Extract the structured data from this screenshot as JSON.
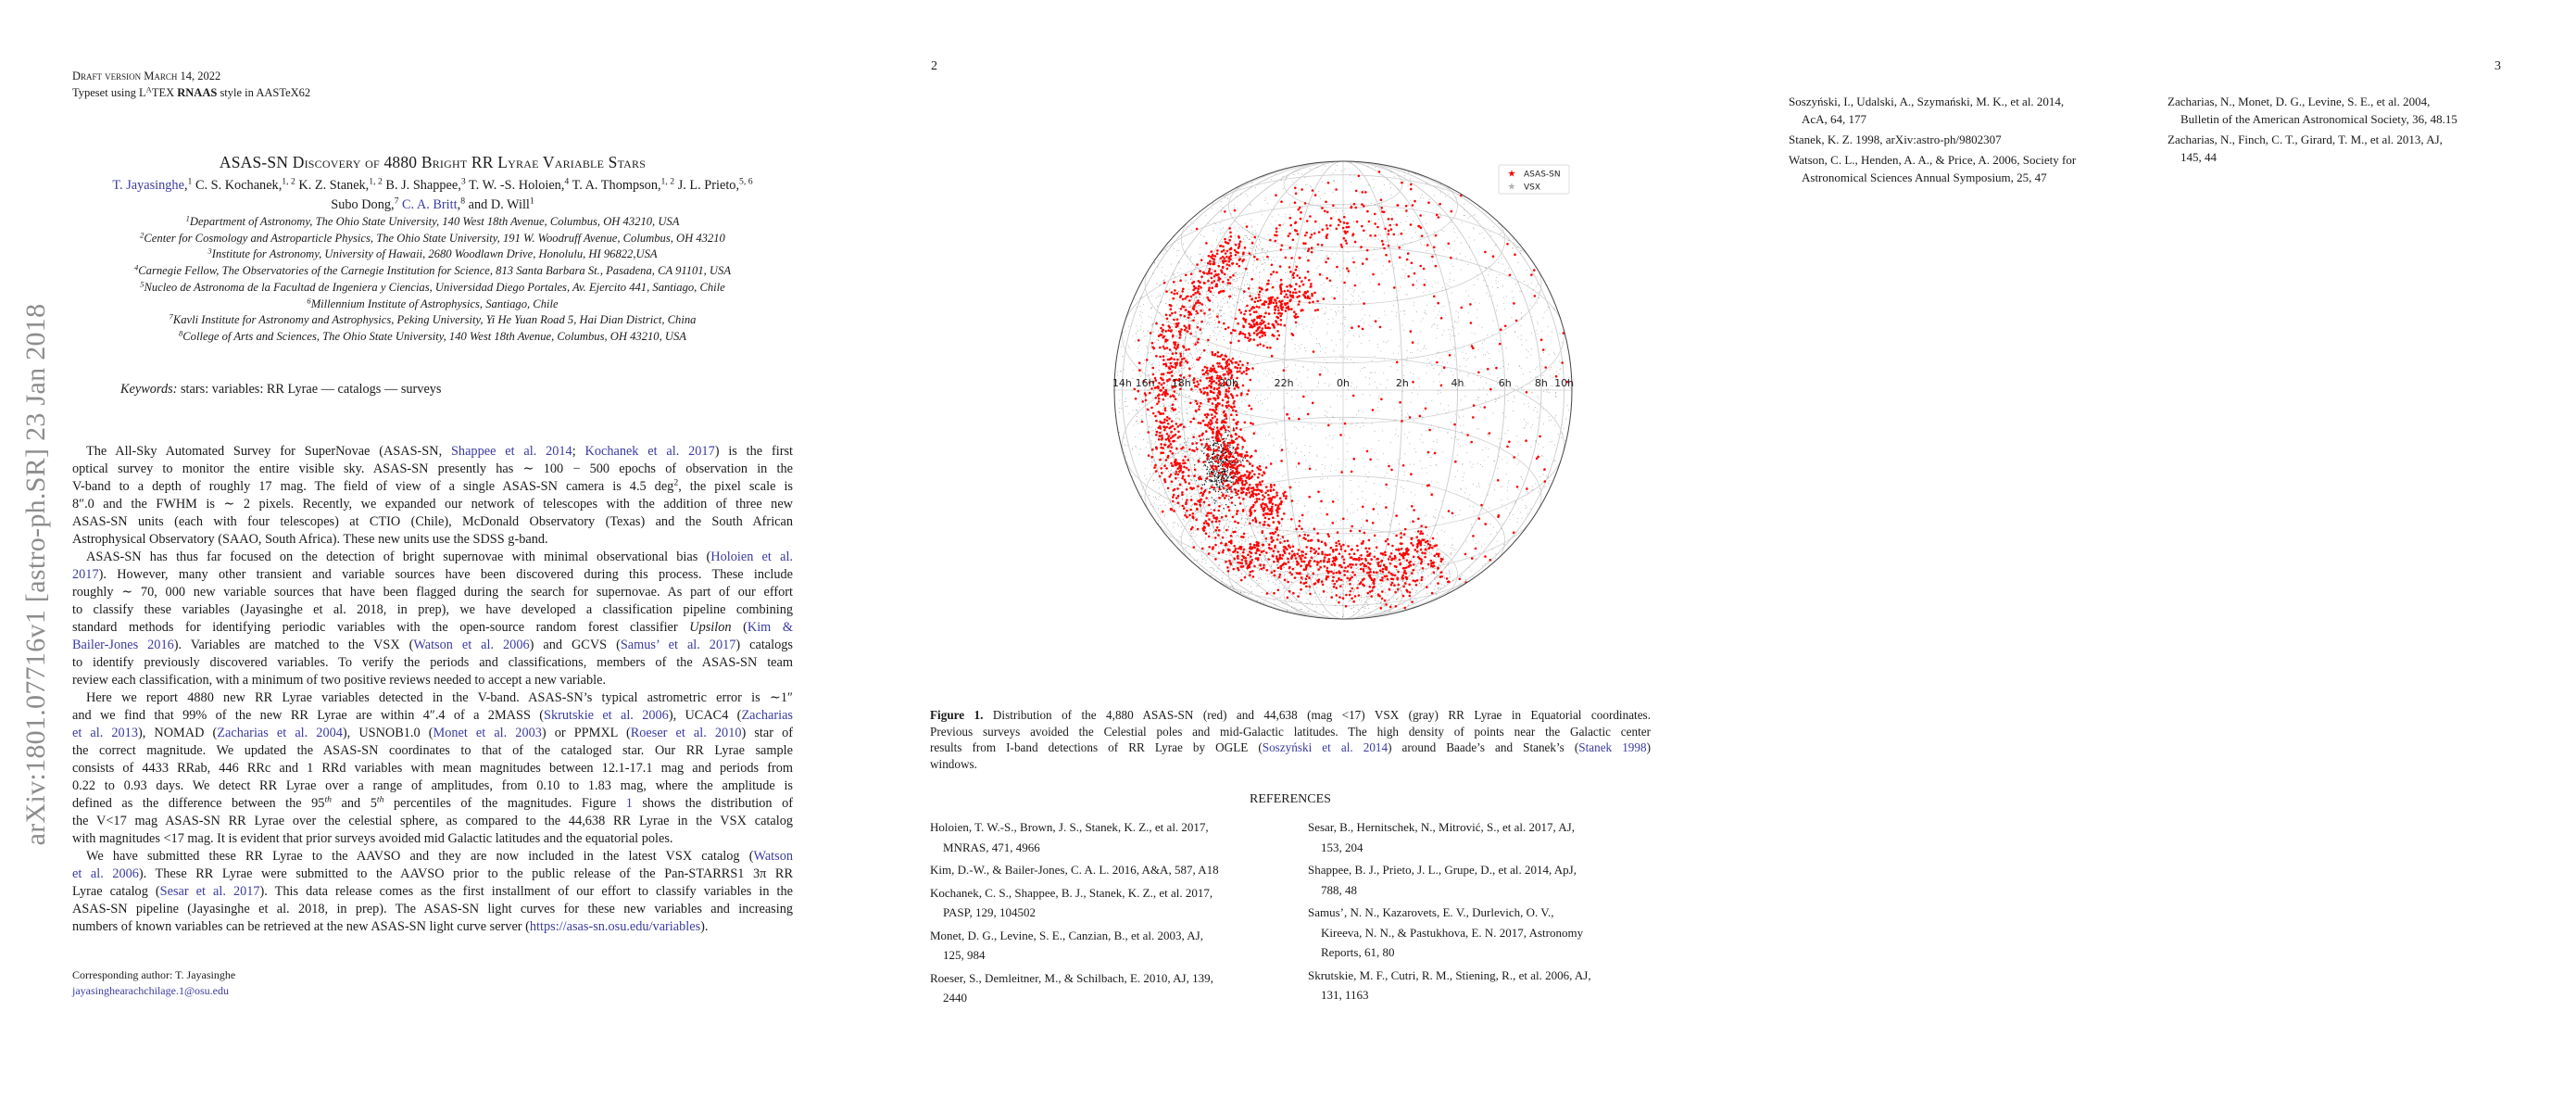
{
  "stamp": "arXiv:1801.07716v1  [astro-ph.SR]  23 Jan 2018",
  "page1": {
    "draft": "Draft version March 14, 2022",
    "typeset": [
      [
        "Typeset using L"
      ],
      [
        "A",
        "s"
      ],
      [
        "TEX "
      ],
      [
        "RNAAS",
        "b"
      ],
      [
        " style in AASTeX62"
      ]
    ],
    "title": "ASAS-SN Discovery of 4880 Bright RR Lyrae Variable Stars",
    "authors": [
      [
        [
          "T. Jayasinghe",
          "l"
        ],
        [
          ","
        ],
        [
          "1",
          "s"
        ],
        [
          " C. S. Kochanek,"
        ],
        [
          "1, 2",
          "s"
        ],
        [
          " K. Z. Stanek,"
        ],
        [
          "1, 2",
          "s"
        ],
        [
          " B. J. Shappee,"
        ],
        [
          "3",
          "s"
        ],
        [
          " T. W. -S. Holoien,"
        ],
        [
          "4",
          "s"
        ],
        [
          " T. A. Thompson,"
        ],
        [
          "1, 2",
          "s"
        ],
        [
          " J. L. Prieto,"
        ],
        [
          "5, 6",
          "s"
        ]
      ],
      [
        [
          "Subo Dong,"
        ],
        [
          "7",
          "s"
        ],
        [
          " "
        ],
        [
          "C. A. Britt",
          "l"
        ],
        [
          ","
        ],
        [
          "8",
          "s"
        ],
        [
          " and D. Will"
        ],
        [
          "1",
          "s"
        ]
      ]
    ],
    "affiliations": [
      [
        [
          "1",
          "s"
        ],
        [
          "Department of Astronomy, The Ohio State University, 140 West 18th Avenue, Columbus, OH 43210, USA"
        ]
      ],
      [
        [
          "2",
          "s"
        ],
        [
          "Center for Cosmology and Astroparticle Physics, The Ohio State University, 191 W. Woodruff Avenue, Columbus, OH 43210"
        ]
      ],
      [
        [
          "3",
          "s"
        ],
        [
          "Institute for Astronomy, University of Hawaii, 2680 Woodlawn Drive, Honolulu, HI 96822,USA"
        ]
      ],
      [
        [
          "4",
          "s"
        ],
        [
          "Carnegie Fellow, The Observatories of the Carnegie Institution for Science, 813 Santa Barbara St., Pasadena, CA 91101, USA"
        ]
      ],
      [
        [
          "5",
          "s"
        ],
        [
          "Nucleo de Astronoma de la Facultad de Ingeniera y Ciencias, Universidad Diego Portales, Av. Ejercito 441, Santiago, Chile"
        ]
      ],
      [
        [
          "6",
          "s"
        ],
        [
          "Millennium Institute of Astrophysics, Santiago, Chile"
        ]
      ],
      [
        [
          "7",
          "s"
        ],
        [
          "Kavli Institute for Astronomy and Astrophysics, Peking University, Yi He Yuan Road 5, Hai Dian District, China"
        ]
      ],
      [
        [
          "8",
          "s"
        ],
        [
          "College of Arts and Sciences, The Ohio State University, 140 West 18th Avenue, Columbus, OH 43210, USA"
        ]
      ]
    ],
    "keywords": [
      [
        "Keywords:",
        "i"
      ],
      [
        " stars: variables: RR Lyrae — catalogs — surveys"
      ]
    ],
    "paragraphs": [
      [
        [
          [
            "The All-Sky Automated Survey for SuperNovae (ASAS-SN, "
          ],
          [
            "Shappee et al. 2014",
            "l"
          ],
          [
            "; "
          ],
          [
            "Kochanek et al. 2017",
            "l"
          ],
          [
            ") is the first"
          ]
        ],
        [
          [
            "optical survey to monitor the entire visible sky.  ASAS-SN presently has ∼ 100 − 500 epochs of observation in the"
          ]
        ],
        [
          [
            "V-band to a depth of roughly 17 mag.  The field of view of a single ASAS-SN camera is 4.5 deg"
          ],
          [
            "2",
            "s"
          ],
          [
            ", the pixel scale is"
          ]
        ],
        [
          [
            "8″.0 and the FWHM is ∼ 2 pixels.  Recently, we expanded our network of telescopes with the addition of three new"
          ]
        ],
        [
          [
            "ASAS-SN units (each with four telescopes) at CTIO (Chile), McDonald Observatory (Texas) and the South African"
          ]
        ],
        [
          [
            "Astrophysical Observatory (SAAO, South Africa). These new units use the SDSS g-band."
          ]
        ]
      ],
      [
        [
          [
            "ASAS-SN has thus far focused on the detection of bright supernovae with minimal observational bias ("
          ],
          [
            "Holoien et al.",
            "l"
          ]
        ],
        [
          [
            "2017",
            "l"
          ],
          [
            "). However, many other transient and variable sources have been discovered during this process.  These include"
          ]
        ],
        [
          [
            "roughly ∼ 70, 000 new variable sources that have been flagged during the search for supernovae. As part of our effort"
          ]
        ],
        [
          [
            "to classify these variables (Jayasinghe et al.   2018, in prep), we have developed a classification pipeline combining"
          ]
        ],
        [
          [
            "standard methods for identifying periodic variables with the open-source random forest classifier "
          ],
          [
            "Upsilon",
            "i"
          ],
          [
            " ("
          ],
          [
            "Kim &",
            "l"
          ]
        ],
        [
          [
            "Bailer-Jones 2016",
            "l"
          ],
          [
            "). Variables are matched to the VSX ("
          ],
          [
            "Watson et al. 2006",
            "l"
          ],
          [
            ") and GCVS ("
          ],
          [
            "Samus’ et al. 2017",
            "l"
          ],
          [
            ") catalogs"
          ]
        ],
        [
          [
            "to identify previously discovered variables.  To verify the periods and classifications, members of the ASAS-SN team"
          ]
        ],
        [
          [
            "review each classification, with a minimum of two positive reviews needed to accept a new variable."
          ]
        ]
      ],
      [
        [
          [
            "Here we report 4880 new RR Lyrae variables detected in the V-band.  ASAS-SN’s typical astrometric error is ∼1″"
          ]
        ],
        [
          [
            "and we find that 99% of the new RR Lyrae are within 4″.4 of a 2MASS ("
          ],
          [
            "Skrutskie et al. 2006",
            "l"
          ],
          [
            "), UCAC4 ("
          ],
          [
            "Zacharias",
            "l"
          ]
        ],
        [
          [
            "et al. 2013",
            "l"
          ],
          [
            "), NOMAD ("
          ],
          [
            "Zacharias et al. 2004",
            "l"
          ],
          [
            "), USNOB1.0 ("
          ],
          [
            "Monet et al. 2003",
            "l"
          ],
          [
            ") or PPMXL ("
          ],
          [
            "Roeser et al. 2010",
            "l"
          ],
          [
            ") star of"
          ]
        ],
        [
          [
            "the correct magnitude.  We updated the ASAS-SN coordinates to that of the cataloged star.  Our RR Lyrae sample"
          ]
        ],
        [
          [
            "consists of 4433 RRab, 446 RRc and 1 RRd variables with mean magnitudes between 12.1-17.1 mag and periods from"
          ]
        ],
        [
          [
            "0.22 to 0.93 days.  We detect RR Lyrae over a range of amplitudes, from 0.10 to 1.83 mag, where the amplitude is"
          ]
        ],
        [
          [
            "defined as the difference between the 95"
          ],
          [
            "th",
            "si"
          ],
          [
            " and 5"
          ],
          [
            "th",
            "si"
          ],
          [
            " percentiles of the magnitudes.  Figure "
          ],
          [
            "1",
            "l"
          ],
          [
            " shows the distribution of"
          ]
        ],
        [
          [
            "the V<17 mag ASAS-SN RR Lyrae over the celestial sphere, as compared to the 44,638 RR Lyrae in the VSX catalog"
          ]
        ],
        [
          [
            "with magnitudes <17 mag. It is evident that prior surveys avoided mid Galactic latitudes and the equatorial poles."
          ]
        ]
      ],
      [
        [
          [
            "We have submitted these RR Lyrae to the AAVSO and they are now included in the latest VSX catalog ("
          ],
          [
            "Watson",
            "l"
          ]
        ],
        [
          [
            "et al. 2006",
            "l"
          ],
          [
            "). These RR Lyrae were submitted to the AAVSO prior to the public release of the Pan-STARRS1 3π RR"
          ]
        ],
        [
          [
            "Lyrae catalog ("
          ],
          [
            "Sesar et al. 2017",
            "l"
          ],
          [
            "). This data release comes as the first installment of our effort to classify variables in the"
          ]
        ],
        [
          [
            "ASAS-SN pipeline (Jayasinghe et al. 2018, in prep). The ASAS-SN light curves for these new variables and increasing"
          ]
        ],
        [
          [
            "numbers of known variables can be retrieved at the new ASAS-SN light curve server ("
          ],
          [
            "https://asas-sn.osu.edu/variables",
            "l"
          ],
          [
            ")."
          ]
        ]
      ]
    ],
    "corresponding_author": "Corresponding author: T. Jayasinghe",
    "email": "jayasinghearachchilage.1@osu.edu"
  },
  "page2": {
    "page_number": "2",
    "caption": [
      [
        [
          "Figure 1.",
          "b"
        ],
        [
          " Distribution of the 4,880 ASAS-SN (red) and 44,638 (mag <17) VSX (gray) RR Lyrae in Equatorial coordinates."
        ]
      ],
      [
        [
          "Previous surveys avoided the Celestial poles and mid-Galactic latitudes.  The high density of points near the Galactic center"
        ]
      ],
      [
        [
          "results from I-band detections of RR Lyrae by OGLE ("
        ],
        [
          "Soszyński et al. 2014",
          "l"
        ],
        [
          ") around Baade’s and Stanek’s ("
        ],
        [
          "Stanek 1998",
          "l"
        ],
        [
          ")"
        ]
      ],
      [
        [
          "windows."
        ]
      ]
    ],
    "references_heading": "REFERENCES",
    "refs_left": [
      [
        "Holoien, T. W.-S., Brown, J. S., Stanek, K. Z., et al. 2017,",
        "MNRAS, 471, 4966"
      ],
      [
        "Kim, D.-W., & Bailer-Jones, C. A. L. 2016, A&A, 587, A18"
      ],
      [
        "Kochanek, C. S., Shappee, B. J., Stanek, K. Z., et al. 2017,",
        "PASP, 129, 104502"
      ],
      [
        "Monet, D. G., Levine, S. E., Canzian, B., et al. 2003, AJ,",
        "125, 984"
      ],
      [
        "Roeser, S., Demleitner, M., & Schilbach, E. 2010, AJ, 139,",
        "2440"
      ]
    ],
    "refs_right": [
      [
        "Sesar, B., Hernitschek, N., Mitrović, S., et al. 2017, AJ,",
        "153, 204"
      ],
      [
        "Shappee, B. J., Prieto, J. L., Grupe, D., et al. 2014, ApJ,",
        "788, 48"
      ],
      [
        "Samus’, N. N., Kazarovets, E. V., Durlevich, O. V.,",
        "Kireeva, N. N., & Pastukhova, E. N. 2017, Astronomy",
        "Reports, 61, 80"
      ],
      [
        "Skrutskie, M. F., Cutri, R. M., Stiening, R., et al. 2006, AJ,",
        "131, 1163"
      ]
    ]
  },
  "page3": {
    "page_number": "3",
    "refs_left": [
      [
        "Soszyński, I., Udalski, A., Szymański, M. K., et al. 2014,",
        "AcA, 64, 177"
      ],
      [
        "Stanek, K. Z. 1998, arXiv:astro-ph/9802307"
      ],
      [
        "Watson, C. L., Henden, A. A., & Price, A. 2006, Society for",
        "Astronomical Sciences Annual Symposium, 25, 47"
      ]
    ],
    "refs_right": [
      [
        "Zacharias, N., Monet, D. G., Levine, S. E., et al. 2004,",
        "Bulletin of the American Astronomical Society, 36, 48.15"
      ],
      [
        "Zacharias, N., Finch, C. T., Girard, T. M., et al. 2013, AJ,",
        "145, 44"
      ]
    ]
  },
  "chart_data": {
    "type": "scatter",
    "title": "",
    "projection": "orthographic, equatorial coordinates",
    "xlabel": "",
    "ylabel": "",
    "ra_ticks": [
      {
        "label": "14h",
        "offset_hours": -10
      },
      {
        "label": "16h",
        "offset_hours": -8
      },
      {
        "label": "18h",
        "offset_hours": -6
      },
      {
        "label": "20h",
        "offset_hours": -4
      },
      {
        "label": "22h",
        "offset_hours": -2
      },
      {
        "label": "0h",
        "offset_hours": 0
      },
      {
        "label": "2h",
        "offset_hours": 2
      },
      {
        "label": "4h",
        "offset_hours": 4
      },
      {
        "label": "6h",
        "offset_hours": 6
      },
      {
        "label": "8h",
        "offset_hours": 8
      },
      {
        "label": "10h",
        "offset_hours": 10
      }
    ],
    "dec_grid_deg": [
      -75,
      -60,
      -45,
      -30,
      -15,
      0,
      15,
      30,
      45,
      60,
      75
    ],
    "grid": true,
    "legend": {
      "placement": "top-right",
      "entries": [
        {
          "label": "ASAS-SN",
          "color": "#ff0000",
          "marker": "star"
        },
        {
          "label": "VSX",
          "color": "#b0b0b0",
          "marker": "star"
        }
      ]
    },
    "series": [
      {
        "name": "ASAS-SN",
        "count": 4880,
        "color": "#ff0000"
      },
      {
        "name": "VSX",
        "count": 44638,
        "color": "#555555"
      }
    ]
  }
}
